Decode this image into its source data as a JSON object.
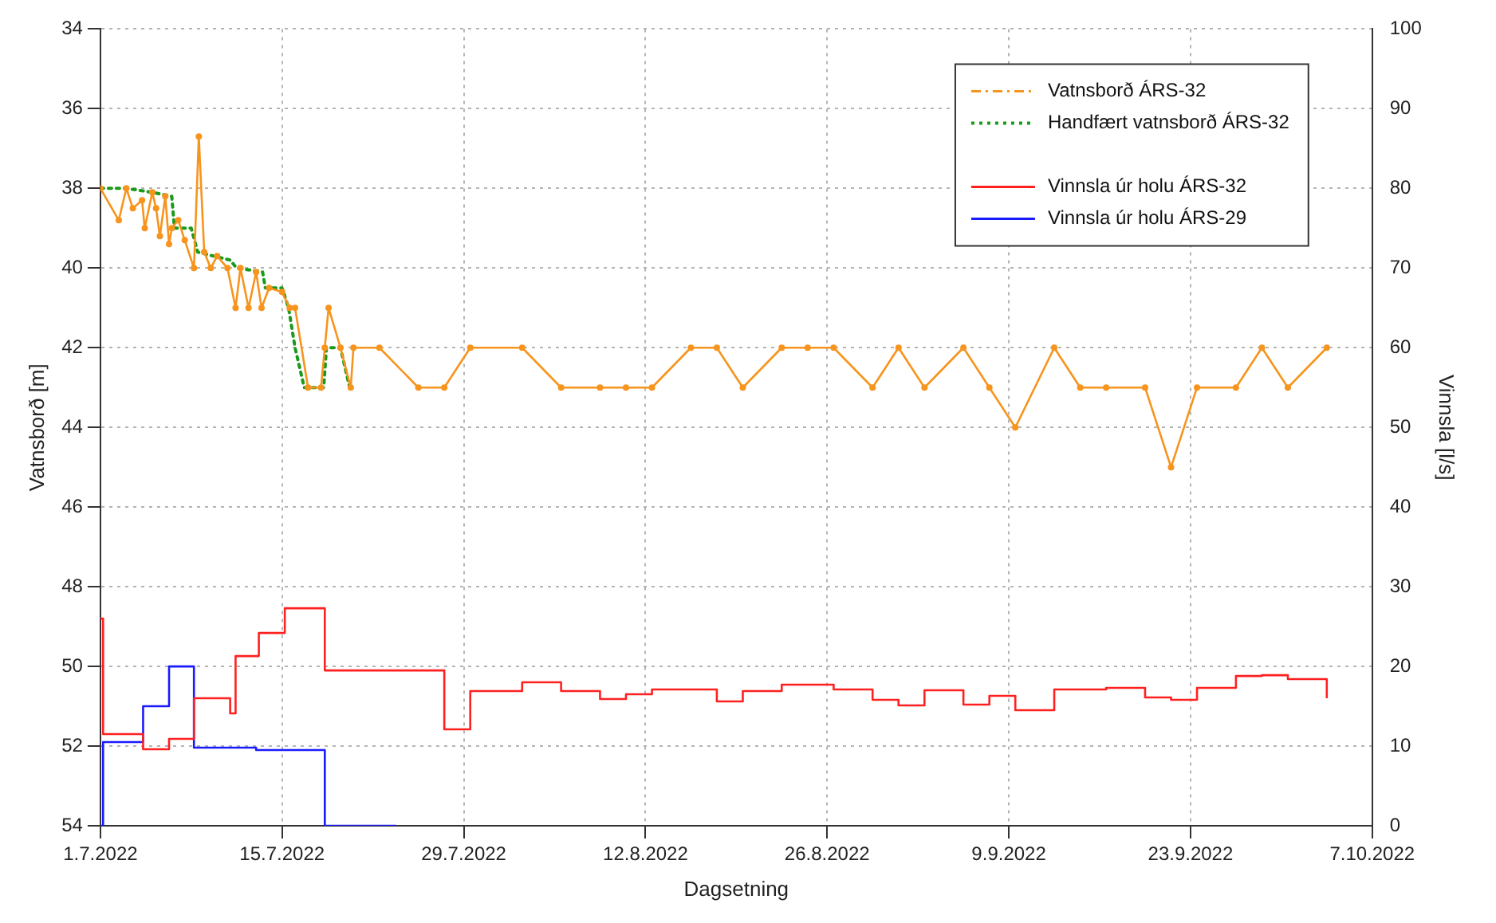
{
  "chart_data": {
    "type": "line",
    "xlabel": "Dagsetning",
    "ylabel": "Vatnsborð [m]",
    "y2label": "Vinnsla [l/s]",
    "xlim": [
      "2022-07-01",
      "2022-10-07"
    ],
    "xticks": [
      {
        "value": "2022-07-01",
        "label": "1.7.2022"
      },
      {
        "value": "2022-07-15",
        "label": "15.7.2022"
      },
      {
        "value": "2022-07-29",
        "label": "29.7.2022"
      },
      {
        "value": "2022-08-12",
        "label": "12.8.2022"
      },
      {
        "value": "2022-08-26",
        "label": "26.8.2022"
      },
      {
        "value": "2022-09-09",
        "label": "9.9.2022"
      },
      {
        "value": "2022-09-23",
        "label": "23.9.2022"
      },
      {
        "value": "2022-10-07",
        "label": "7.10.2022"
      }
    ],
    "ylim": [
      54,
      34
    ],
    "yticks": [
      34,
      36,
      38,
      40,
      42,
      44,
      46,
      48,
      50,
      52,
      54
    ],
    "y2lim": [
      0,
      100
    ],
    "y2ticks": [
      0,
      10,
      20,
      30,
      40,
      50,
      60,
      70,
      80,
      90,
      100
    ],
    "grid": true,
    "legend": "top right",
    "series": [
      {
        "name": "Vatnsborð ÁRS-32",
        "color": "#f7941d",
        "marker": "circle",
        "line_style": "solid",
        "x": [
          "2022-07-01T00:00",
          "2022-07-02T10:00",
          "2022-07-03T00:00",
          "2022-07-03T12:00",
          "2022-07-04T05:00",
          "2022-07-04T10:00",
          "2022-07-05T00:00",
          "2022-07-05T07:00",
          "2022-07-05T14:00",
          "2022-07-06T00:00",
          "2022-07-06T07:00",
          "2022-07-06T12:00",
          "2022-07-07T00:00",
          "2022-07-07T12:00",
          "2022-07-08T05:00",
          "2022-07-08T14:00",
          "2022-07-09T00:00",
          "2022-07-09T12:00",
          "2022-07-10T00:00",
          "2022-07-10T19:00",
          "2022-07-11T10:00",
          "2022-07-11T19:00",
          "2022-07-12T10:00",
          "2022-07-13T00:00",
          "2022-07-13T10:00",
          "2022-07-14T00:00",
          "2022-07-15T00:00",
          "2022-07-15T14:00",
          "2022-07-16T00:00",
          "2022-07-17T00:00",
          "2022-07-18T00:00",
          "2022-07-18T07:00",
          "2022-07-18T14:00",
          "2022-07-19T12:00",
          "2022-07-20T07:00",
          "2022-07-20T12:00",
          "2022-07-22T12:00",
          "2022-07-25T12:00",
          "2022-07-27T12:00",
          "2022-07-29T12:00",
          "2022-08-02T12:00",
          "2022-08-05T12:00",
          "2022-08-08T12:00",
          "2022-08-10T12:00",
          "2022-08-12T12:00",
          "2022-08-15T12:00",
          "2022-08-17T12:00",
          "2022-08-19T12:00",
          "2022-08-22T12:00",
          "2022-08-24T12:00",
          "2022-08-26T12:00",
          "2022-08-29T12:00",
          "2022-08-31T12:00",
          "2022-09-02T12:00",
          "2022-09-05T12:00",
          "2022-09-07T12:00",
          "2022-09-09T12:00",
          "2022-09-12T12:00",
          "2022-09-14T12:00",
          "2022-09-16T12:00",
          "2022-09-19T12:00",
          "2022-09-21T12:00",
          "2022-09-23T12:00",
          "2022-09-26T12:00",
          "2022-09-28T12:00",
          "2022-09-30T12:00",
          "2022-10-03T12:00"
        ],
        "values": [
          38.0,
          38.8,
          38.0,
          38.5,
          38.3,
          39.0,
          38.1,
          38.5,
          39.2,
          38.2,
          39.4,
          39.0,
          38.8,
          39.3,
          40.0,
          36.7,
          39.6,
          40.0,
          39.7,
          40.0,
          41.0,
          40.0,
          41.0,
          40.1,
          41.0,
          40.5,
          40.6,
          41.0,
          41.0,
          43.0,
          43.0,
          42.0,
          41.0,
          42.0,
          43.0,
          42.0,
          42.0,
          43,
          43,
          42,
          42,
          43,
          43,
          43,
          43,
          42,
          42,
          43,
          42,
          42,
          42,
          43,
          42,
          43,
          42,
          43,
          44,
          42,
          43,
          43,
          43,
          45,
          43,
          43,
          42,
          43,
          42
        ]
      },
      {
        "name": "Handfært vatnsborð ÁRS-32",
        "color": "#1a9a1a",
        "line_style": "dotted",
        "x": [
          "2022-07-01T00:00",
          "2022-07-03T00:00",
          "2022-07-05T00:00",
          "2022-07-06T12:00",
          "2022-07-06T17:00",
          "2022-07-08T00:00",
          "2022-07-08T12:00",
          "2022-07-11T00:00",
          "2022-07-11T12:00",
          "2022-07-13T12:00",
          "2022-07-13T17:00",
          "2022-07-15T00:00",
          "2022-07-15T12:00",
          "2022-07-16T00:00",
          "2022-07-16T17:00",
          "2022-07-18T05:00",
          "2022-07-18T10:00",
          "2022-07-19T12:00",
          "2022-07-20T05:00",
          "2022-07-20T12:00"
        ],
        "values": [
          38.0,
          38.0,
          38.1,
          38.2,
          39.0,
          39.0,
          39.6,
          39.8,
          40.0,
          40.1,
          40.5,
          40.5,
          41.0,
          42.0,
          43.0,
          43.0,
          42.0,
          42.0,
          43.0,
          43.0
        ]
      },
      {
        "name": "Vinnsla úr holu ÁRS-32",
        "type": "step",
        "axis": "y2",
        "color": "#ff2020",
        "line_style": "solid",
        "x": [
          "2022-07-01T00:00",
          "2022-07-01T05:00",
          "2022-07-04T07:00",
          "2022-07-06T07:00",
          "2022-07-08T05:00",
          "2022-07-11T00:00",
          "2022-07-11T10:00",
          "2022-07-13T05:00",
          "2022-07-15T05:00",
          "2022-07-18T07:00",
          "2022-07-27T12:00",
          "2022-07-29T12:00",
          "2022-08-02T12:00",
          "2022-08-05T12:00",
          "2022-08-08T12:00",
          "2022-08-10T12:00",
          "2022-08-12T12:00",
          "2022-08-17T12:00",
          "2022-08-19T12:00",
          "2022-08-22T12:00",
          "2022-08-26T12:00",
          "2022-08-29T12:00",
          "2022-08-31T12:00",
          "2022-09-02T12:00",
          "2022-09-05T12:00",
          "2022-09-07T12:00",
          "2022-09-09T12:00",
          "2022-09-12T12:00",
          "2022-09-16T12:00",
          "2022-09-19T12:00",
          "2022-09-21T12:00",
          "2022-09-23T12:00",
          "2022-09-26T12:00",
          "2022-09-28T12:00",
          "2022-09-30T12:00",
          "2022-10-03T12:00"
        ],
        "values": [
          26,
          11.5,
          9.6,
          10.9,
          16.0,
          14.1,
          21.3,
          24.2,
          27.3,
          19.5,
          12.1,
          16.9,
          18.0,
          16.9,
          15.9,
          16.5,
          17.1,
          15.6,
          16.9,
          17.7,
          17.1,
          15.8,
          15.1,
          17.0,
          15.2,
          16.3,
          14.5,
          17.1,
          17.3,
          16.1,
          15.8,
          17.3,
          18.8,
          18.9,
          18.4,
          16.0
        ]
      },
      {
        "name": "Vinnsla úr holu ÁRS-29",
        "type": "step",
        "axis": "y2",
        "color": "#1a1aff",
        "line_style": "solid",
        "x": [
          "2022-07-01T00:00",
          "2022-07-01T05:00",
          "2022-07-04T07:00",
          "2022-07-06T07:00",
          "2022-07-08T05:00",
          "2022-07-13T00:00",
          "2022-07-18T07:00",
          "2022-07-23T19:00"
        ],
        "values": [
          0,
          10.5,
          15.0,
          20.0,
          9.8,
          9.5,
          0,
          0
        ]
      }
    ]
  }
}
